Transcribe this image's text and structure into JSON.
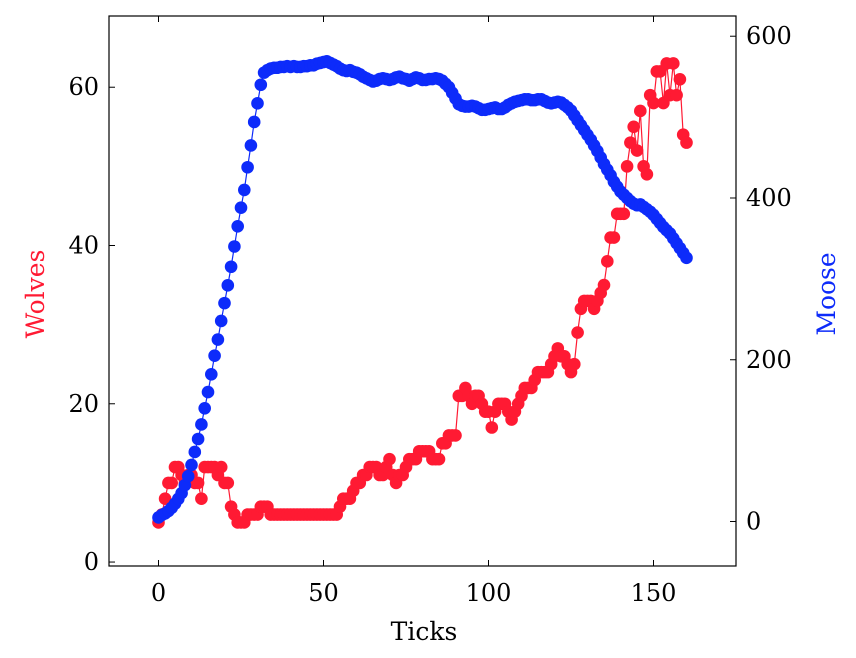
{
  "chart_data": {
    "type": "line",
    "xlabel": "Ticks",
    "ylabel_left": "Wolves",
    "ylabel_right": "Moose",
    "xlim": [
      -15,
      175
    ],
    "ylim_left": [
      -0.5,
      69
    ],
    "ylim_right": [
      -55,
      625
    ],
    "x_ticks": [
      0,
      50,
      100,
      150
    ],
    "y_ticks_left": [
      0,
      20,
      40,
      60
    ],
    "y_ticks_right": [
      0,
      200,
      400,
      600
    ],
    "grid": false,
    "series": [
      {
        "name": "Wolves",
        "axis": "left",
        "color": "#ff1a33",
        "x": [
          0,
          1,
          2,
          3,
          4,
          5,
          6,
          7,
          8,
          9,
          10,
          11,
          12,
          13,
          14,
          15,
          16,
          17,
          18,
          19,
          20,
          21,
          22,
          23,
          24,
          25,
          26,
          27,
          28,
          29,
          30,
          31,
          32,
          33,
          34,
          35,
          36,
          37,
          38,
          39,
          40,
          41,
          42,
          43,
          44,
          45,
          46,
          47,
          48,
          49,
          50,
          51,
          52,
          53,
          54,
          55,
          56,
          57,
          58,
          59,
          60,
          61,
          62,
          63,
          64,
          65,
          66,
          67,
          68,
          69,
          70,
          71,
          72,
          73,
          74,
          75,
          76,
          77,
          78,
          79,
          80,
          81,
          82,
          83,
          84,
          85,
          86,
          87,
          88,
          89,
          90,
          91,
          92,
          93,
          94,
          95,
          96,
          97,
          98,
          99,
          100,
          101,
          102,
          103,
          104,
          105,
          106,
          107,
          108,
          109,
          110,
          111,
          112,
          113,
          114,
          115,
          116,
          117,
          118,
          119,
          120,
          121,
          122,
          123,
          124,
          125,
          126,
          127,
          128,
          129,
          130,
          131,
          132,
          133,
          134,
          135,
          136,
          137,
          138,
          139,
          140,
          141,
          142,
          143,
          144,
          145,
          146,
          147,
          148,
          149,
          150,
          151,
          152,
          153,
          154,
          155,
          156,
          157,
          158,
          159,
          160
        ],
        "values": [
          5,
          6,
          8,
          10,
          10,
          12,
          12,
          11,
          10,
          11,
          11,
          10,
          10,
          8,
          12,
          12,
          12,
          12,
          11,
          12,
          10,
          10,
          7,
          6,
          5,
          5,
          5,
          6,
          6,
          6,
          6,
          7,
          7,
          7,
          6,
          6,
          6,
          6,
          6,
          6,
          6,
          6,
          6,
          6,
          6,
          6,
          6,
          6,
          6,
          6,
          6,
          6,
          6,
          6,
          6,
          7,
          8,
          8,
          8,
          9,
          10,
          10,
          11,
          11,
          12,
          12,
          12,
          11,
          11,
          12,
          13,
          11,
          10,
          11,
          11,
          12,
          13,
          13,
          13,
          14,
          14,
          14,
          14,
          13,
          13,
          13,
          15,
          15,
          16,
          16,
          16,
          21,
          21,
          22,
          21,
          20,
          21,
          21,
          20,
          19,
          19,
          17,
          19,
          20,
          20,
          20,
          19,
          18,
          19,
          20,
          21,
          22,
          22,
          22,
          23,
          24,
          24,
          24,
          24,
          25,
          26,
          27,
          26,
          26,
          25,
          24,
          25,
          29,
          32,
          33,
          33,
          33,
          32,
          33,
          34,
          35,
          38,
          41,
          41,
          44,
          44,
          44,
          50,
          53,
          55,
          52,
          57,
          50,
          49,
          59,
          58,
          62,
          62,
          58,
          63,
          59,
          63,
          59,
          61,
          54,
          53
        ]
      },
      {
        "name": "Moose",
        "axis": "right",
        "color": "#0d2bfa",
        "x": [
          0,
          1,
          2,
          3,
          4,
          5,
          6,
          7,
          8,
          9,
          10,
          11,
          12,
          13,
          14,
          15,
          16,
          17,
          18,
          19,
          20,
          21,
          22,
          23,
          24,
          25,
          26,
          27,
          28,
          29,
          30,
          31,
          32,
          33,
          34,
          35,
          36,
          37,
          38,
          39,
          40,
          41,
          42,
          43,
          44,
          45,
          46,
          47,
          48,
          49,
          50,
          51,
          52,
          53,
          54,
          55,
          56,
          57,
          58,
          59,
          60,
          61,
          62,
          63,
          64,
          65,
          66,
          67,
          68,
          69,
          70,
          71,
          72,
          73,
          74,
          75,
          76,
          77,
          78,
          79,
          80,
          81,
          82,
          83,
          84,
          85,
          86,
          87,
          88,
          89,
          90,
          91,
          92,
          93,
          94,
          95,
          96,
          97,
          98,
          99,
          100,
          101,
          102,
          103,
          104,
          105,
          106,
          107,
          108,
          109,
          110,
          111,
          112,
          113,
          114,
          115,
          116,
          117,
          118,
          119,
          120,
          121,
          122,
          123,
          124,
          125,
          126,
          127,
          128,
          129,
          130,
          131,
          132,
          133,
          134,
          135,
          136,
          137,
          138,
          139,
          140,
          141,
          142,
          143,
          144,
          145,
          146,
          147,
          148,
          149,
          150,
          151,
          152,
          153,
          154,
          155,
          156,
          157,
          158,
          159,
          160
        ],
        "values": [
          5,
          8,
          10,
          13,
          17,
          22,
          28,
          35,
          45,
          56,
          70,
          86,
          102,
          120,
          140,
          160,
          182,
          205,
          225,
          248,
          270,
          292,
          315,
          340,
          365,
          388,
          410,
          438,
          465,
          494,
          517,
          540,
          555,
          558,
          560,
          561,
          561,
          562,
          562,
          563,
          562,
          563,
          562,
          562,
          563,
          563,
          564,
          564,
          566,
          567,
          568,
          569,
          567,
          565,
          563,
          560,
          558,
          557,
          558,
          556,
          555,
          553,
          550,
          548,
          546,
          544,
          545,
          547,
          548,
          547,
          546,
          547,
          549,
          550,
          548,
          547,
          545,
          547,
          549,
          548,
          546,
          546,
          547,
          547,
          548,
          547,
          545,
          541,
          537,
          530,
          523,
          516,
          514,
          513,
          513,
          514,
          513,
          511,
          509,
          509,
          510,
          511,
          512,
          510,
          510,
          512,
          515,
          517,
          519,
          520,
          521,
          522,
          522,
          521,
          521,
          522,
          522,
          520,
          518,
          517,
          518,
          519,
          518,
          515,
          512,
          508,
          502,
          496,
          490,
          484,
          478,
          472,
          465,
          458,
          450,
          442,
          435,
          428,
          420,
          414,
          408,
          404,
          400,
          396,
          393,
          391,
          392,
          389,
          386,
          383,
          379,
          374,
          369,
          364,
          360,
          356,
          350,
          344,
          338,
          332,
          326
        ]
      }
    ]
  }
}
